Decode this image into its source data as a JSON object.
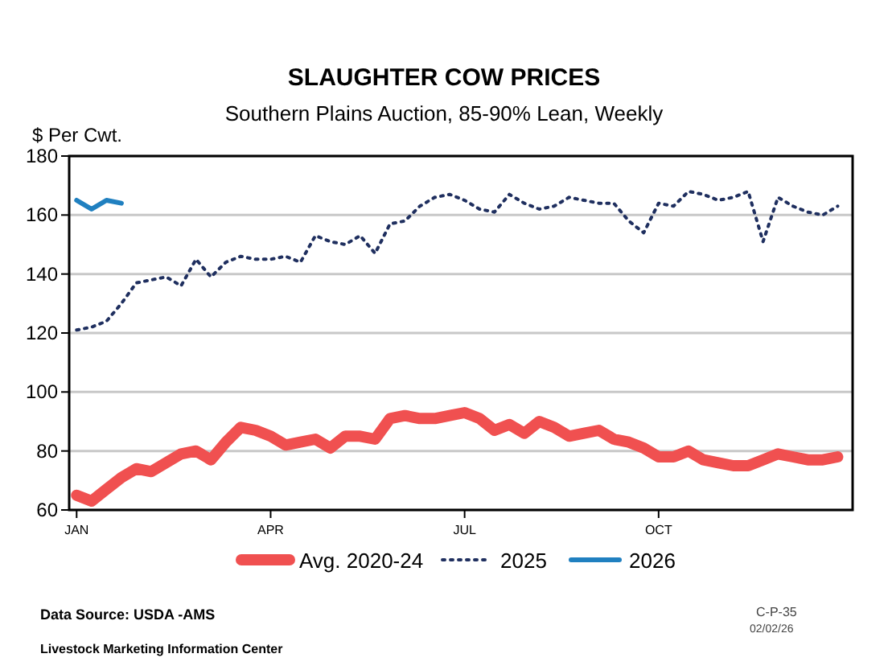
{
  "chart_data": {
    "type": "line",
    "title": "SLAUGHTER COW PRICES",
    "subtitle": "Southern Plains Auction, 85-90% Lean, Weekly",
    "ylabel": "$ Per Cwt.",
    "categories": [
      "JAN",
      null,
      null,
      null,
      null,
      null,
      null,
      null,
      null,
      null,
      null,
      null,
      null,
      "APR",
      null,
      null,
      null,
      null,
      null,
      null,
      null,
      null,
      null,
      null,
      null,
      null,
      "JUL",
      null,
      null,
      null,
      null,
      null,
      null,
      null,
      null,
      null,
      null,
      null,
      null,
      "OCT",
      null,
      null,
      null,
      null,
      null,
      null,
      null,
      null,
      null,
      null,
      null,
      null
    ],
    "ylim": [
      60,
      180
    ],
    "yticks": [
      60,
      80,
      100,
      120,
      140,
      160,
      180
    ],
    "grid": "y",
    "legend": "bottom",
    "series": [
      {
        "name": "Avg. 2020-24",
        "color": "#f05050",
        "line_style": "solid",
        "values": [
          65,
          63,
          67,
          71,
          74,
          73,
          76,
          79,
          80,
          77,
          83,
          88,
          87,
          85,
          82,
          83,
          84,
          81,
          85,
          85,
          84,
          91,
          92,
          91,
          91,
          92,
          93,
          91,
          87,
          89,
          86,
          90,
          88,
          85,
          86,
          87,
          84,
          83,
          81,
          78,
          78,
          80,
          77,
          76,
          75,
          75,
          77,
          79,
          78,
          77,
          77,
          78
        ]
      },
      {
        "name": "2025",
        "color": "#1f2f5f",
        "line_style": "dotted",
        "values": [
          121,
          122,
          124,
          130,
          137,
          138,
          139,
          136,
          145,
          139,
          144,
          146,
          145,
          145,
          146,
          144,
          153,
          151,
          150,
          153,
          147,
          157,
          158,
          163,
          166,
          167,
          165,
          162,
          161,
          167,
          164,
          162,
          163,
          166,
          165,
          164,
          164,
          158,
          154,
          164,
          163,
          168,
          167,
          165,
          166,
          168,
          151,
          166,
          163,
          161,
          160,
          163
        ]
      },
      {
        "name": "2026",
        "color": "#2080c0",
        "line_style": "solid",
        "values": [
          165,
          162,
          165,
          164,
          null,
          null,
          null,
          null,
          null,
          null,
          null,
          null,
          null,
          null,
          null,
          null,
          null,
          null,
          null,
          null,
          null,
          null,
          null,
          null,
          null,
          null,
          null,
          null,
          null,
          null,
          null,
          null,
          null,
          null,
          null,
          null,
          null,
          null,
          null,
          null,
          null,
          null,
          null,
          null,
          null,
          null,
          null,
          null,
          null,
          null,
          null,
          null
        ]
      }
    ],
    "annotations": [
      "Data Source: USDA -AMS",
      "Livestock Marketing Information Center",
      "C-P-35",
      "02/02/26"
    ]
  }
}
